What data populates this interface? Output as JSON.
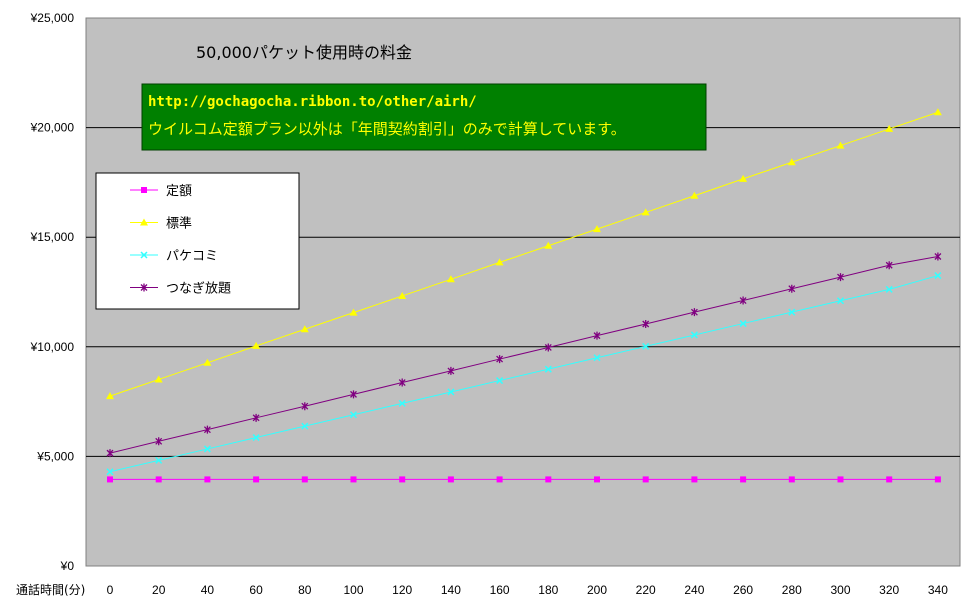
{
  "chart_data": {
    "type": "line",
    "title": "50,000パケット使用時の料金",
    "xlabel": "通話時間(分)",
    "ylabel": "",
    "x": [
      0,
      20,
      40,
      60,
      80,
      100,
      120,
      140,
      160,
      180,
      200,
      220,
      240,
      260,
      280,
      300,
      320,
      340
    ],
    "ylim": [
      0,
      25000
    ],
    "yticks": [
      {
        "value": 0,
        "label": "¥0"
      },
      {
        "value": 5000,
        "label": "¥5,000"
      },
      {
        "value": 10000,
        "label": "¥10,000"
      },
      {
        "value": 15000,
        "label": "¥15,000"
      },
      {
        "value": 20000,
        "label": "¥20,000"
      },
      {
        "value": 25000,
        "label": "¥25,000"
      }
    ],
    "xticks": [
      "0",
      "20",
      "40",
      "60",
      "80",
      "100",
      "120",
      "140",
      "160",
      "180",
      "200",
      "220",
      "240",
      "260",
      "280",
      "300",
      "320",
      "340"
    ],
    "grid": true,
    "legend_position": "left",
    "series": [
      {
        "name": "定額",
        "color": "#ff00ff",
        "marker": "square",
        "values": [
          3950,
          3950,
          3950,
          3950,
          3950,
          3950,
          3950,
          3950,
          3950,
          3950,
          3950,
          3950,
          3950,
          3950,
          3950,
          3950,
          3950,
          3950
        ]
      },
      {
        "name": "標準",
        "color": "#ffff00",
        "marker": "triangle",
        "values": [
          7750,
          8510,
          9270,
          10040,
          10800,
          11560,
          12320,
          13080,
          13850,
          14610,
          15370,
          16130,
          16890,
          17660,
          18420,
          19180,
          19940,
          20700
        ]
      },
      {
        "name": "パケコミ",
        "color": "#33ffff",
        "marker": "x",
        "values": [
          4300,
          4820,
          5340,
          5860,
          6380,
          6900,
          7420,
          7940,
          8460,
          8980,
          9500,
          10020,
          10540,
          11060,
          11580,
          12100,
          12620,
          13250
        ]
      },
      {
        "name": "つなぎ放題",
        "color": "#800080",
        "marker": "star",
        "values": [
          5150,
          5690,
          6220,
          6760,
          7290,
          7830,
          8370,
          8900,
          9440,
          9970,
          10510,
          11040,
          11580,
          12110,
          12650,
          13180,
          13720,
          14120
        ]
      }
    ],
    "annotation": {
      "line1": "http://gochagocha.ribbon.to/other/airh/",
      "line2": "ウイルコム定額プラン以外は「年間契約割引」のみで計算しています。"
    }
  },
  "colors": {
    "plot_background": "#c0c0c0",
    "annotation_background": "#008000",
    "annotation_text": "#ffff00",
    "gridline": "#000000"
  }
}
